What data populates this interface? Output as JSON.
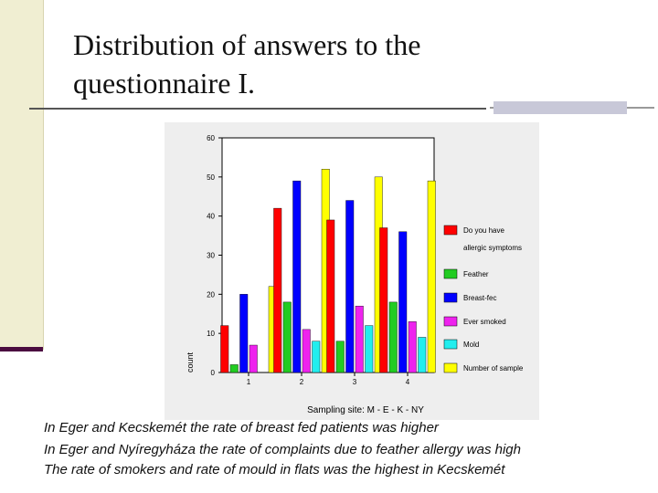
{
  "slide": {
    "title_line1": "Distribution of answers to the",
    "title_line2": "questionnaire I.",
    "captions": [
      "In Eger and Kecskemét the rate of breast fed patients was higher",
      "In Eger and Nyíregyháza the rate of complaints due to feather allergy was high",
      "The rate of smokers and rate of mould in flats was the highest in Kecskemét"
    ],
    "colors": {
      "sidebar": "#f0eed2",
      "sidebar_bar": "#4b0c40",
      "chart_bg": "#eeeeee"
    }
  },
  "chart_data": {
    "type": "bar",
    "categories": [
      "1",
      "2",
      "3",
      "4"
    ],
    "xlabel": "Sampling site: M - E - K - NY",
    "ylabel": "count",
    "ylim": [
      0,
      60
    ],
    "yticks": [
      0,
      10,
      20,
      30,
      40,
      50,
      60
    ],
    "grid": false,
    "legend_position": "right",
    "series": [
      {
        "name": "Do you have allergic symptoms",
        "color": "#ff0000",
        "values": [
          12,
          42,
          39,
          37
        ]
      },
      {
        "name": "Feather",
        "color": "#22cc22",
        "values": [
          2,
          18,
          8,
          18
        ]
      },
      {
        "name": "Breast-fec",
        "color": "#0000ff",
        "values": [
          20,
          49,
          44,
          36
        ]
      },
      {
        "name": "Ever smoked",
        "color": "#ee22ee",
        "values": [
          7,
          11,
          17,
          13
        ]
      },
      {
        "name": "Mold",
        "color": "#22eeee",
        "values": [
          0,
          8,
          12,
          9
        ]
      },
      {
        "name": "Number of sample",
        "color": "#ffff00",
        "values": [
          22,
          52,
          50,
          49
        ]
      }
    ],
    "legend_labels": [
      [
        "Do you have",
        "allergic symptoms"
      ],
      [
        "Feather"
      ],
      [
        "Breast-fec"
      ],
      [
        "Ever smoked"
      ],
      [
        "Mold"
      ],
      [
        "Number of sample"
      ]
    ]
  }
}
